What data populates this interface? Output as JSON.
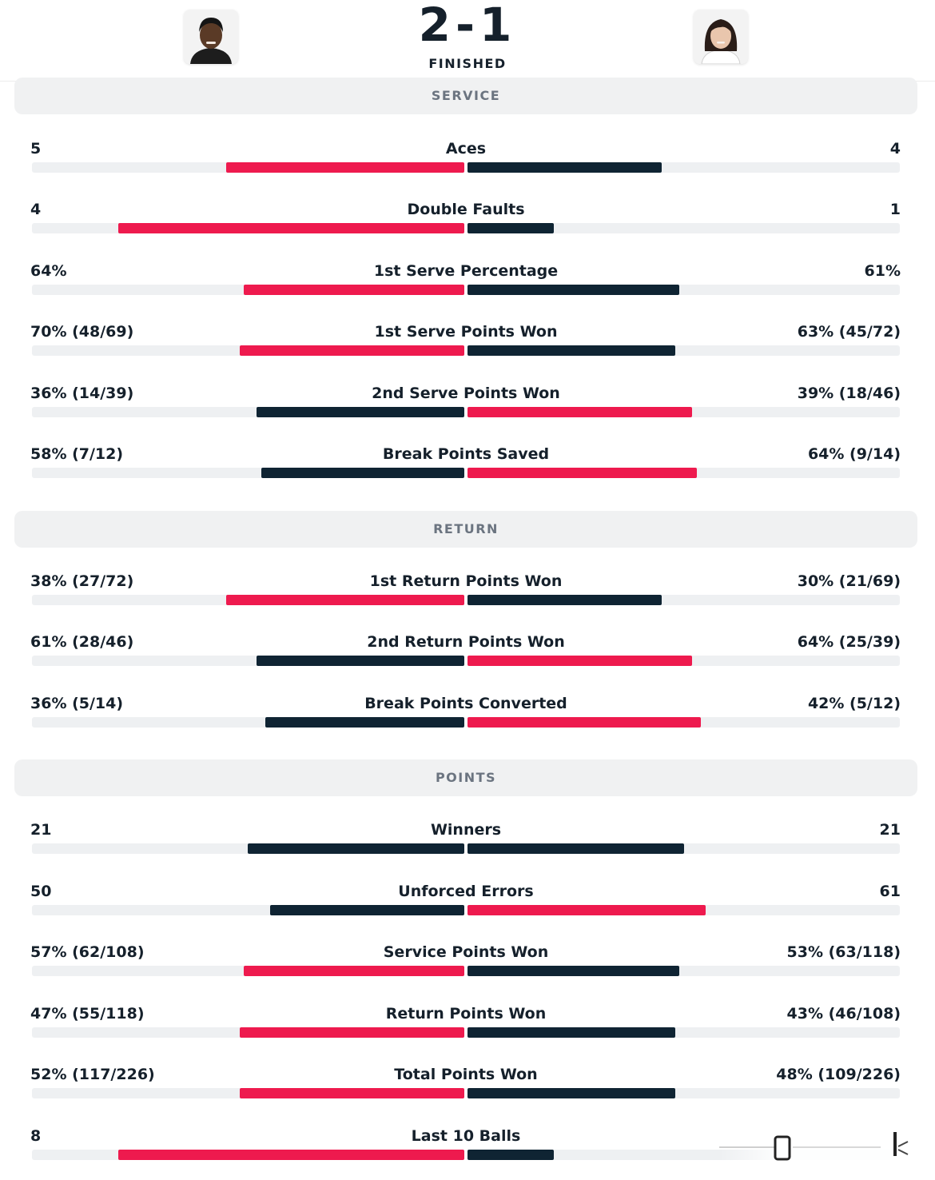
{
  "header": {
    "score": "2-1",
    "status": "FINISHED"
  },
  "colors": {
    "winner": "#ee1a4e",
    "loser": "#0f2433",
    "track": "#eef0f2",
    "section_bg": "#f0f1f2",
    "section_text": "#6b7480"
  },
  "sections": {
    "service": {
      "title": "SERVICE",
      "stats": [
        {
          "label": "Aces",
          "left": "5",
          "right": "4",
          "left_frac": 0.55,
          "right_frac": 0.45,
          "left_color": "#ee1a4e",
          "right_color": "#0f2433"
        },
        {
          "label": "Double Faults",
          "left": "4",
          "right": "1",
          "left_frac": 0.8,
          "right_frac": 0.2,
          "left_color": "#ee1a4e",
          "right_color": "#0f2433"
        },
        {
          "label": "1st Serve Percentage",
          "left": "64%",
          "right": "61%",
          "left_frac": 0.51,
          "right_frac": 0.49,
          "left_color": "#ee1a4e",
          "right_color": "#0f2433"
        },
        {
          "label": "1st Serve Points Won",
          "left": "70% (48/69)",
          "right": "63% (45/72)",
          "left_frac": 0.52,
          "right_frac": 0.48,
          "left_color": "#ee1a4e",
          "right_color": "#0f2433"
        },
        {
          "label": "2nd Serve Points Won",
          "left": "36% (14/39)",
          "right": "39% (18/46)",
          "left_frac": 0.48,
          "right_frac": 0.52,
          "left_color": "#0f2433",
          "right_color": "#ee1a4e"
        },
        {
          "label": "Break Points Saved",
          "left": "58% (7/12)",
          "right": "64% (9/14)",
          "left_frac": 0.47,
          "right_frac": 0.53,
          "left_color": "#0f2433",
          "right_color": "#ee1a4e"
        }
      ]
    },
    "return": {
      "title": "RETURN",
      "stats": [
        {
          "label": "1st Return Points Won",
          "left": "38% (27/72)",
          "right": "30% (21/69)",
          "left_frac": 0.55,
          "right_frac": 0.45,
          "left_color": "#ee1a4e",
          "right_color": "#0f2433"
        },
        {
          "label": "2nd Return Points Won",
          "left": "61% (28/46)",
          "right": "64% (25/39)",
          "left_frac": 0.48,
          "right_frac": 0.52,
          "left_color": "#0f2433",
          "right_color": "#ee1a4e"
        },
        {
          "label": "Break Points Converted",
          "left": "36% (5/14)",
          "right": "42% (5/12)",
          "left_frac": 0.46,
          "right_frac": 0.54,
          "left_color": "#0f2433",
          "right_color": "#ee1a4e"
        }
      ]
    },
    "points": {
      "title": "POINTS",
      "stats": [
        {
          "label": "Winners",
          "left": "21",
          "right": "21",
          "left_frac": 0.5,
          "right_frac": 0.5,
          "left_color": "#0f2433",
          "right_color": "#0f2433"
        },
        {
          "label": "Unforced Errors",
          "left": "50",
          "right": "61",
          "left_frac": 0.45,
          "right_frac": 0.55,
          "left_color": "#0f2433",
          "right_color": "#ee1a4e"
        },
        {
          "label": "Service Points Won",
          "left": "57% (62/108)",
          "right": "53% (63/118)",
          "left_frac": 0.51,
          "right_frac": 0.49,
          "left_color": "#ee1a4e",
          "right_color": "#0f2433"
        },
        {
          "label": "Return Points Won",
          "left": "47% (55/118)",
          "right": "43% (46/108)",
          "left_frac": 0.52,
          "right_frac": 0.48,
          "left_color": "#ee1a4e",
          "right_color": "#0f2433"
        },
        {
          "label": "Total Points Won",
          "left": "52% (117/226)",
          "right": "48% (109/226)",
          "left_frac": 0.52,
          "right_frac": 0.48,
          "left_color": "#ee1a4e",
          "right_color": "#0f2433"
        },
        {
          "label": "Last 10 Balls",
          "left": "8",
          "right": "",
          "left_frac": 0.8,
          "right_frac": 0.2,
          "left_color": "#ee1a4e",
          "right_color": "#0f2433"
        }
      ]
    }
  }
}
